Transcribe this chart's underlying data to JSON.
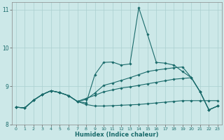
{
  "xlabel": "Humidex (Indice chaleur)",
  "xlim": [
    -0.5,
    23.5
  ],
  "ylim": [
    8,
    11.2
  ],
  "yticks": [
    8,
    9,
    10,
    11
  ],
  "xticks": [
    0,
    1,
    2,
    3,
    4,
    5,
    6,
    7,
    8,
    9,
    10,
    11,
    12,
    13,
    14,
    15,
    16,
    17,
    18,
    19,
    20,
    21,
    22,
    23
  ],
  "background_color": "#cce8e8",
  "grid_color": "#aacfcf",
  "line_color": "#1a6b6b",
  "series": {
    "s1": [
      8.45,
      8.43,
      8.63,
      8.78,
      8.88,
      8.83,
      8.75,
      8.6,
      8.56,
      9.3,
      9.62,
      9.63,
      9.55,
      9.58,
      11.05,
      10.35,
      9.62,
      9.6,
      9.55,
      9.38,
      9.22,
      8.85,
      8.38,
      8.48
    ],
    "s2": [
      8.45,
      8.43,
      8.63,
      8.78,
      8.88,
      8.83,
      8.75,
      8.6,
      8.65,
      8.82,
      9.02,
      9.08,
      9.15,
      9.22,
      9.3,
      9.38,
      9.42,
      9.45,
      9.48,
      9.5,
      9.22,
      8.85,
      8.38,
      8.48
    ],
    "s3": [
      8.45,
      8.43,
      8.63,
      8.78,
      8.88,
      8.83,
      8.75,
      8.6,
      8.68,
      8.76,
      8.85,
      8.9,
      8.95,
      8.98,
      9.02,
      9.06,
      9.1,
      9.14,
      9.18,
      9.2,
      9.22,
      8.85,
      8.38,
      8.48
    ],
    "s4": [
      8.45,
      8.43,
      8.63,
      8.78,
      8.88,
      8.83,
      8.75,
      8.6,
      8.52,
      8.48,
      8.48,
      8.49,
      8.5,
      8.51,
      8.52,
      8.54,
      8.56,
      8.58,
      8.6,
      8.62,
      8.62,
      8.62,
      8.62,
      8.62
    ]
  }
}
